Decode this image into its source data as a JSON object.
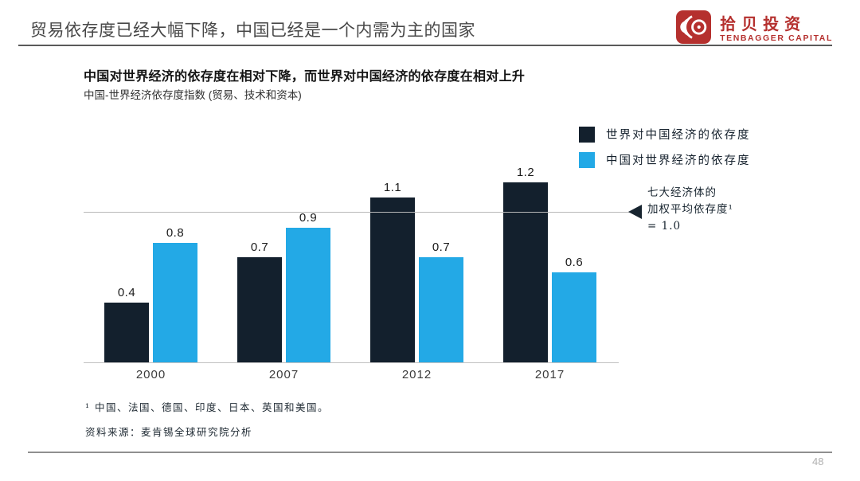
{
  "slide": {
    "header": {
      "title": "贸易依存度已经大幅下降，中国已经是一个内需为主的国家",
      "logo": {
        "zh": "拾贝投资",
        "en": "TENBAGGER CAPITAL",
        "color": "#b5302e"
      }
    },
    "chart": {
      "annotation": {
        "lines": [
          "七大经济体的",
          "加权平均依存度¹",
          "= 1.0"
        ]
      }
    },
    "footnote": "¹  中国、法国、德国、印度、日本、英国和美国。",
    "source": "资料来源：麦肯锡全球研究院分析",
    "page_number": "48"
  },
  "chart_data": {
    "type": "bar",
    "title": "中国对世界经济的依存度在相对下降，而世界对中国经济的依存度在相对上升",
    "subtitle": "中国-世界经济依存度指数 (贸易、技术和资本)",
    "categories": [
      "2000",
      "2007",
      "2012",
      "2017"
    ],
    "series": [
      {
        "name": "世界对中国经济的依存度",
        "color": "#13202d",
        "values": [
          0.4,
          0.7,
          1.1,
          1.2
        ]
      },
      {
        "name": "中国对世界经济的依存度",
        "color": "#23a9e6",
        "values": [
          0.8,
          0.9,
          0.7,
          0.6
        ]
      }
    ],
    "value_labels": true,
    "grid": false,
    "legend_position": "top-right",
    "ylim": [
      0,
      1.3
    ],
    "reference_line": {
      "value": 1.0,
      "label": "七大经济体的加权平均依存度¹ = 1.0"
    }
  }
}
